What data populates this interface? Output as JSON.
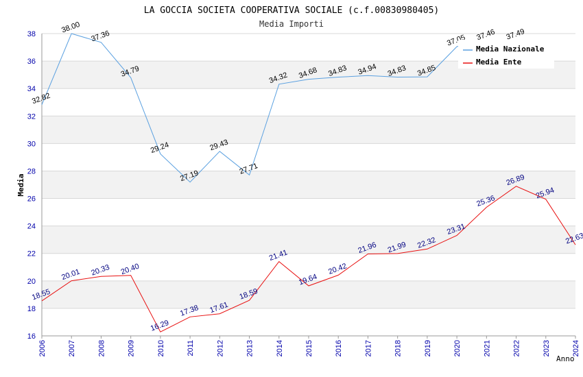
{
  "chart_data": {
    "type": "line",
    "title": "LA GOCCIA SOCIETA COOPERATIVA SOCIALE (c.f.00830980405)",
    "subtitle": "Media Importi",
    "xlabel": "Anno",
    "ylabel": "Media",
    "ylim": [
      16,
      38
    ],
    "yticks": [
      "16",
      "18",
      "20",
      "22",
      "24",
      "26",
      "28",
      "30",
      "32",
      "34",
      "36",
      "38"
    ],
    "categories": [
      "2006",
      "2007",
      "2008",
      "2009",
      "2010",
      "2011",
      "2012",
      "2013",
      "2014",
      "2015",
      "2016",
      "2017",
      "2018",
      "2019",
      "2020",
      "2021",
      "2022",
      "2023",
      "2024"
    ],
    "legend_position": "top-right",
    "series": [
      {
        "name": "Media Nazionale",
        "color": "#5aa0e0",
        "label_color": "#000000",
        "values": [
          32.82,
          38.0,
          37.36,
          34.79,
          29.24,
          27.19,
          29.43,
          27.71,
          34.32,
          34.68,
          34.83,
          34.94,
          34.83,
          34.85,
          37.05,
          37.46,
          37.49,
          null,
          null
        ],
        "labels": [
          "32.82",
          "38.00",
          "37.36",
          "34.79",
          "29.24",
          "27.19",
          "29.43",
          "27.71",
          "34.32",
          "34.68",
          "34.83",
          "34.94",
          "34.83",
          "34.85",
          "37.05",
          "37.46",
          "37.49",
          "",
          ""
        ]
      },
      {
        "name": "Media Ente",
        "color": "#e81010",
        "label_color": "#000080",
        "values": [
          18.55,
          20.01,
          20.33,
          20.4,
          16.29,
          17.38,
          17.61,
          18.59,
          21.41,
          19.64,
          20.42,
          21.96,
          21.99,
          22.32,
          23.31,
          25.36,
          26.89,
          25.94,
          22.63
        ],
        "labels": [
          "18.55",
          "20.01",
          "20.33",
          "20.40",
          "16.29",
          "17.38",
          "17.61",
          "18.59",
          "21.41",
          "19.64",
          "20.42",
          "21.96",
          "21.99",
          "22.32",
          "23.31",
          "25.36",
          "26.89",
          "25.94",
          "22.63"
        ]
      }
    ]
  }
}
